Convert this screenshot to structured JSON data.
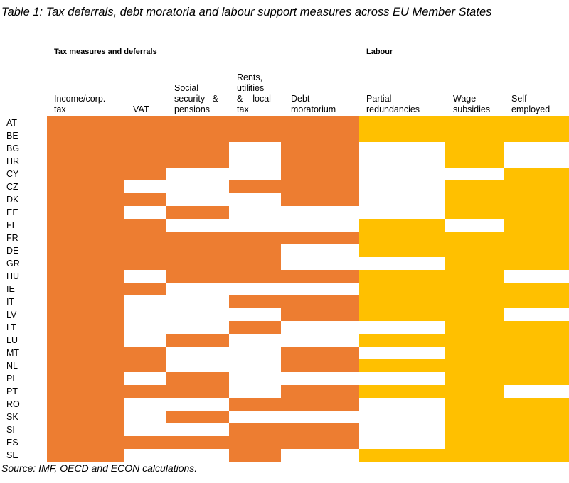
{
  "caption": "Table 1: Tax deferrals, debt moratoria and labour support measures across EU Member States",
  "group_labels": {
    "tax": "Tax measures and deferrals",
    "labour": "Labour"
  },
  "columns": [
    "Income/corp.\ntax",
    "VAT",
    "Social\nsecurity   &\npensions",
    "Rents,\nutilities\n&    local\ntax",
    "Debt\nmoratorium",
    "Partial\nredundancies",
    "Wage\nsubsidies",
    "Self-\nemployed"
  ],
  "column_groups": [
    "tax",
    "tax",
    "tax",
    "tax",
    "tax",
    "labour",
    "labour",
    "labour"
  ],
  "colors": {
    "tax": "#ED7D31",
    "labour": "#FFC000",
    "empty": "#FFFFFF"
  },
  "rows": [
    "AT",
    "BE",
    "BG",
    "HR",
    "CY",
    "CZ",
    "DK",
    "EE",
    "FI",
    "FR",
    "DE",
    "GR",
    "HU",
    "IE",
    "IT",
    "LV",
    "LT",
    "LU",
    "MT",
    "NL",
    "PL",
    "PT",
    "RO",
    "SK",
    "SI",
    "ES",
    "SE"
  ],
  "cells": [
    [
      1,
      1,
      1,
      1,
      1,
      1,
      1,
      1
    ],
    [
      1,
      1,
      1,
      1,
      1,
      1,
      1,
      1
    ],
    [
      1,
      1,
      1,
      0,
      1,
      0,
      1,
      0
    ],
    [
      1,
      1,
      1,
      0,
      1,
      0,
      1,
      0
    ],
    [
      1,
      1,
      0,
      0,
      1,
      0,
      0,
      1
    ],
    [
      1,
      0,
      0,
      1,
      1,
      0,
      1,
      1
    ],
    [
      1,
      1,
      0,
      0,
      1,
      0,
      1,
      1
    ],
    [
      1,
      0,
      1,
      0,
      0,
      0,
      1,
      1
    ],
    [
      1,
      1,
      0,
      0,
      0,
      1,
      0,
      1
    ],
    [
      1,
      1,
      1,
      1,
      1,
      1,
      1,
      1
    ],
    [
      1,
      1,
      1,
      1,
      0,
      1,
      1,
      1
    ],
    [
      1,
      1,
      1,
      1,
      0,
      0,
      1,
      1
    ],
    [
      1,
      0,
      1,
      1,
      1,
      1,
      1,
      0
    ],
    [
      1,
      1,
      0,
      0,
      0,
      1,
      1,
      1
    ],
    [
      1,
      0,
      0,
      1,
      1,
      1,
      1,
      1
    ],
    [
      1,
      0,
      0,
      0,
      1,
      1,
      1,
      0
    ],
    [
      1,
      0,
      0,
      1,
      0,
      0,
      1,
      1
    ],
    [
      1,
      0,
      1,
      0,
      0,
      1,
      1,
      1
    ],
    [
      1,
      1,
      0,
      0,
      1,
      0,
      1,
      1
    ],
    [
      1,
      1,
      0,
      0,
      1,
      1,
      1,
      1
    ],
    [
      1,
      0,
      1,
      0,
      0,
      0,
      1,
      1
    ],
    [
      1,
      1,
      1,
      0,
      1,
      1,
      1,
      0
    ],
    [
      1,
      0,
      0,
      1,
      1,
      0,
      1,
      1
    ],
    [
      1,
      0,
      1,
      0,
      0,
      0,
      1,
      1
    ],
    [
      1,
      0,
      0,
      1,
      1,
      0,
      1,
      1
    ],
    [
      1,
      1,
      1,
      1,
      1,
      0,
      1,
      1
    ],
    [
      1,
      0,
      0,
      1,
      0,
      1,
      1,
      1
    ]
  ],
  "source": "Source: IMF, OECD and ECON calculations."
}
